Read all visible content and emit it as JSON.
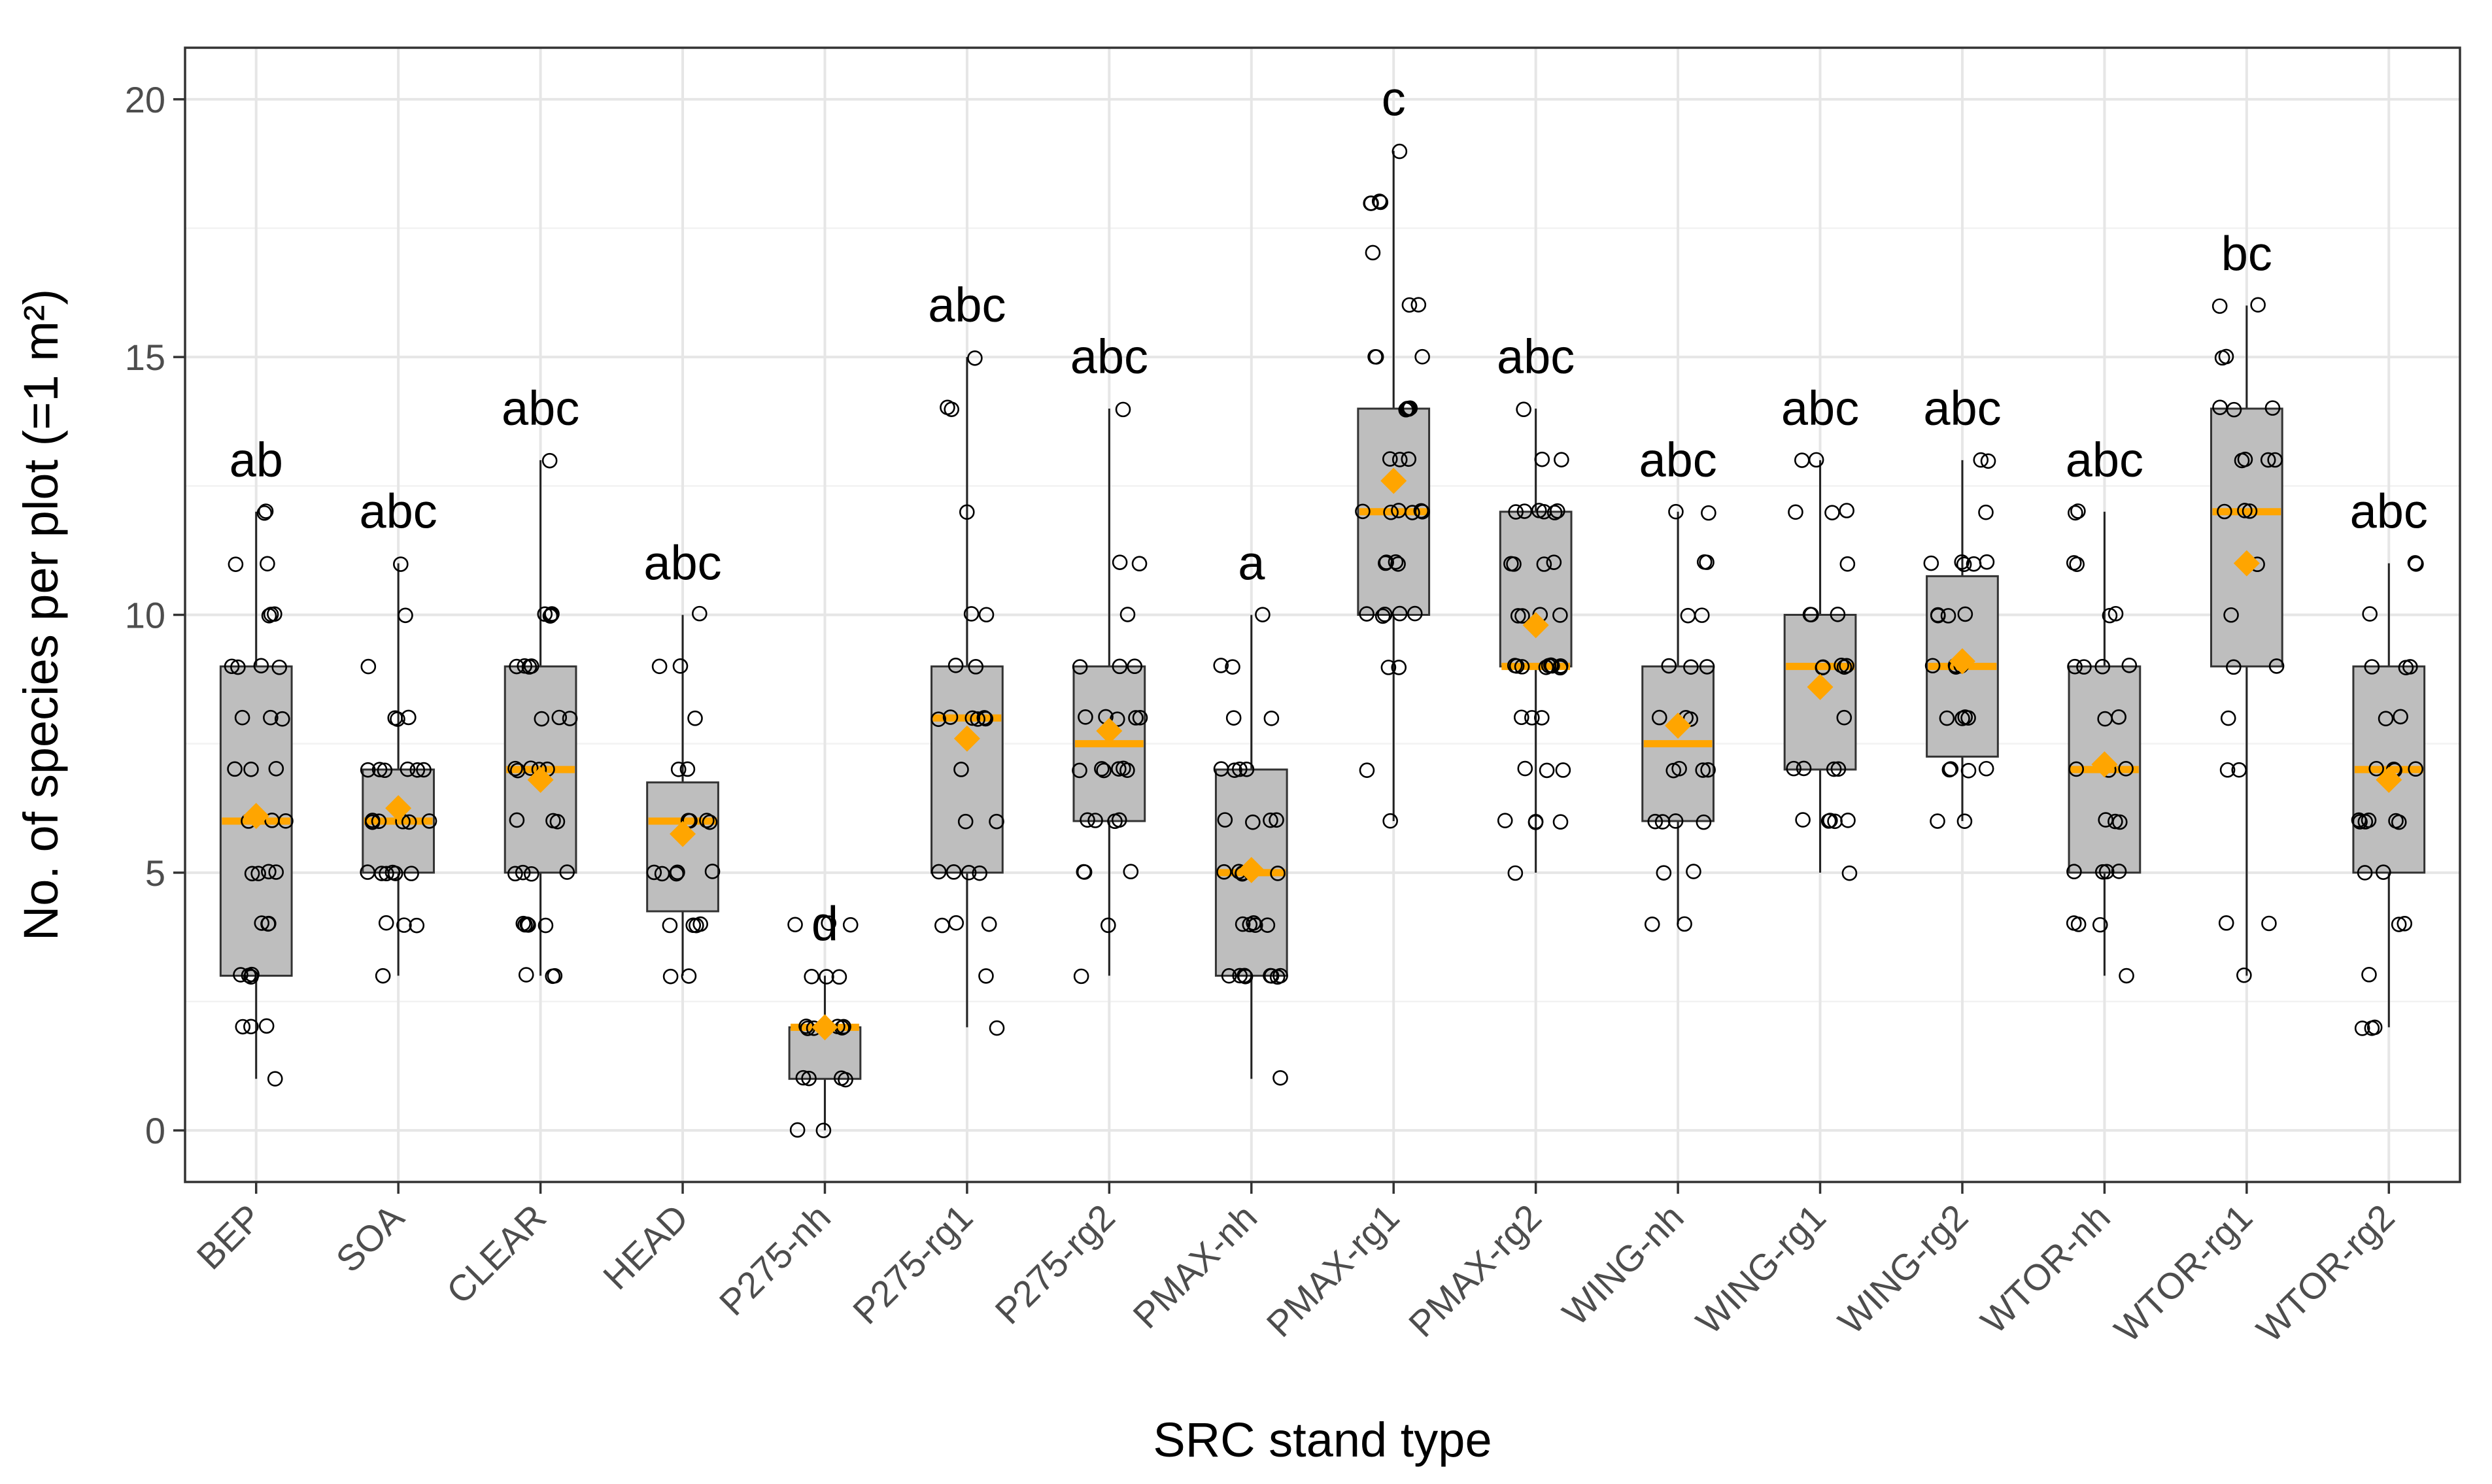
{
  "chart_data": {
    "type": "box",
    "title": "",
    "xlabel": "SRC stand type",
    "ylabel": "No. of species per plot (=1 m²)",
    "ylim": [
      -1,
      21
    ],
    "yticks": [
      0,
      5,
      10,
      15,
      20
    ],
    "ytick_labels": [
      "0",
      "5",
      "10",
      "15",
      "20"
    ],
    "grid": true,
    "categories": [
      "BEP",
      "SOA",
      "CLEAR",
      "HEAD",
      "P275-nh",
      "P275-rg1",
      "P275-rg2",
      "PMAX-nh",
      "PMAX-rg1",
      "PMAX-rg2",
      "WING-nh",
      "WING-rg1",
      "WING-rg2",
      "WTOR-nh",
      "WTOR-rg1",
      "WTOR-rg2"
    ],
    "boxes": [
      {
        "min": 1,
        "q1": 3,
        "median": 6,
        "q3": 9,
        "max": 12,
        "mean": 6.1,
        "letter": "ab",
        "points": [
          12,
          12,
          11,
          11,
          10,
          10,
          10,
          9,
          9,
          9,
          9,
          8,
          8,
          8,
          7,
          7,
          7,
          6,
          6,
          6,
          5,
          5,
          5,
          5,
          4,
          4,
          4,
          3,
          3,
          3,
          3,
          2,
          2,
          2,
          1
        ]
      },
      {
        "min": 3,
        "q1": 5,
        "median": 6,
        "q3": 7,
        "max": 11,
        "mean": 6.25,
        "letter": "abc",
        "points": [
          11,
          10,
          9,
          8,
          8,
          8,
          7,
          7,
          7,
          7,
          7,
          7,
          6,
          6,
          6,
          6,
          6,
          6,
          5,
          5,
          5,
          5,
          5,
          5,
          4,
          4,
          4,
          3
        ]
      },
      {
        "min": 3,
        "q1": 5,
        "median": 7,
        "q3": 9,
        "max": 13,
        "mean": 6.8,
        "letter": "abc",
        "points": [
          13,
          10,
          10,
          10,
          10,
          10,
          9,
          9,
          9,
          9,
          8,
          8,
          8,
          7,
          7,
          7,
          7,
          7,
          6,
          6,
          6,
          5,
          5,
          5,
          5,
          4,
          4,
          4,
          4,
          4,
          3,
          3,
          3
        ]
      },
      {
        "min": 3,
        "q1": 4.25,
        "median": 6,
        "q3": 6.75,
        "max": 10,
        "mean": 5.75,
        "letter": "abc",
        "points": [
          10,
          9,
          9,
          8,
          7,
          7,
          6,
          6,
          6,
          6,
          5,
          5,
          5,
          5,
          5,
          4,
          4,
          4,
          4,
          3,
          3
        ]
      },
      {
        "min": 0,
        "q1": 1,
        "median": 2,
        "q3": 2,
        "max": 3,
        "mean": 2.0,
        "letter": "d",
        "points": [
          4,
          4,
          4,
          3,
          3,
          3,
          2,
          2,
          2,
          2,
          2,
          2,
          1,
          1,
          1,
          1,
          0,
          0
        ]
      },
      {
        "min": 2,
        "q1": 5,
        "median": 8,
        "q3": 9,
        "max": 15,
        "mean": 7.6,
        "letter": "abc",
        "points": [
          15,
          14,
          14,
          12,
          10,
          10,
          9,
          9,
          8,
          8,
          8,
          8,
          8,
          8,
          7,
          6,
          6,
          5,
          5,
          5,
          5,
          4,
          4,
          4,
          3,
          2
        ]
      },
      {
        "min": 3,
        "q1": 6,
        "median": 7.5,
        "q3": 9,
        "max": 14,
        "mean": 7.75,
        "letter": "abc",
        "points": [
          14,
          11,
          11,
          10,
          9,
          9,
          9,
          8,
          8,
          8,
          8,
          8,
          7,
          7,
          7,
          7,
          7,
          7,
          6,
          6,
          6,
          6,
          5,
          5,
          5,
          4,
          3
        ]
      },
      {
        "min": 1,
        "q1": 3,
        "median": 5,
        "q3": 7,
        "max": 10,
        "mean": 5.05,
        "letter": "a",
        "points": [
          10,
          9,
          9,
          8,
          8,
          7,
          7,
          7,
          7,
          6,
          6,
          6,
          6,
          5,
          5,
          5,
          5,
          5,
          5,
          4,
          4,
          4,
          4,
          4,
          3,
          3,
          3,
          3,
          3,
          3,
          3,
          3,
          1
        ]
      },
      {
        "min": 6,
        "q1": 10,
        "median": 12,
        "q3": 14,
        "max": 19,
        "mean": 12.6,
        "letter": "c",
        "points": [
          19,
          18,
          18,
          18,
          18,
          17,
          16,
          16,
          15,
          15,
          15,
          14,
          14,
          14,
          14,
          13,
          13,
          13,
          12,
          12,
          12,
          12,
          12,
          12,
          11,
          11,
          11,
          11,
          10,
          10,
          10,
          10,
          10,
          9,
          9,
          7,
          6
        ]
      },
      {
        "min": 5,
        "q1": 9,
        "median": 9,
        "q3": 12,
        "max": 14,
        "mean": 9.8,
        "letter": "abc",
        "points": [
          14,
          13,
          13,
          12,
          12,
          12,
          12,
          12,
          12,
          11,
          11,
          11,
          11,
          10,
          10,
          10,
          10,
          9,
          9,
          9,
          9,
          9,
          9,
          9,
          9,
          9,
          8,
          8,
          8,
          7,
          7,
          7,
          6,
          6,
          6,
          6,
          5
        ]
      },
      {
        "min": 4,
        "q1": 6,
        "median": 7.5,
        "q3": 9,
        "max": 12,
        "mean": 7.85,
        "letter": "abc",
        "points": [
          12,
          12,
          11,
          11,
          10,
          10,
          9,
          9,
          9,
          8,
          8,
          8,
          7,
          7,
          7,
          7,
          6,
          6,
          6,
          6,
          5,
          5,
          4,
          4
        ]
      },
      {
        "min": 5,
        "q1": 7,
        "median": 9,
        "q3": 10,
        "max": 13,
        "mean": 8.6,
        "letter": "abc",
        "points": [
          13,
          13,
          12,
          12,
          12,
          11,
          10,
          10,
          10,
          9,
          9,
          9,
          9,
          9,
          8,
          7,
          7,
          7,
          7,
          6,
          6,
          6,
          6,
          6,
          5
        ]
      },
      {
        "min": 6,
        "q1": 7.25,
        "median": 9,
        "q3": 10.75,
        "max": 13,
        "mean": 9.1,
        "letter": "abc",
        "points": [
          13,
          13,
          12,
          11,
          11,
          11,
          11,
          11,
          10,
          10,
          10,
          10,
          9,
          9,
          9,
          9,
          8,
          8,
          8,
          8,
          7,
          7,
          7,
          7,
          6,
          6
        ]
      },
      {
        "min": 3,
        "q1": 5,
        "median": 7,
        "q3": 9,
        "max": 12,
        "mean": 7.1,
        "letter": "abc",
        "points": [
          12,
          12,
          11,
          11,
          10,
          10,
          9,
          9,
          9,
          9,
          8,
          8,
          7,
          7,
          7,
          6,
          6,
          6,
          5,
          5,
          5,
          5,
          4,
          4,
          4,
          3
        ]
      },
      {
        "min": 3,
        "q1": 9,
        "median": 12,
        "q3": 14,
        "max": 16,
        "mean": 11.0,
        "letter": "bc",
        "points": [
          16,
          16,
          15,
          15,
          14,
          14,
          14,
          13,
          13,
          13,
          13,
          12,
          12,
          12,
          11,
          10,
          9,
          9,
          8,
          7,
          7,
          4,
          4,
          3
        ]
      },
      {
        "min": 2,
        "q1": 5,
        "median": 7,
        "q3": 9,
        "max": 11,
        "mean": 6.8,
        "letter": "abc",
        "points": [
          11,
          11,
          10,
          9,
          9,
          9,
          8,
          8,
          7,
          7,
          7,
          7,
          6,
          6,
          6,
          6,
          6,
          6,
          5,
          5,
          4,
          4,
          3,
          2,
          2,
          2
        ]
      }
    ],
    "colors": {
      "box_fill": "#bebebe",
      "median": "#ffa500",
      "mean_marker": "#ffa500",
      "points": "#000000"
    }
  }
}
